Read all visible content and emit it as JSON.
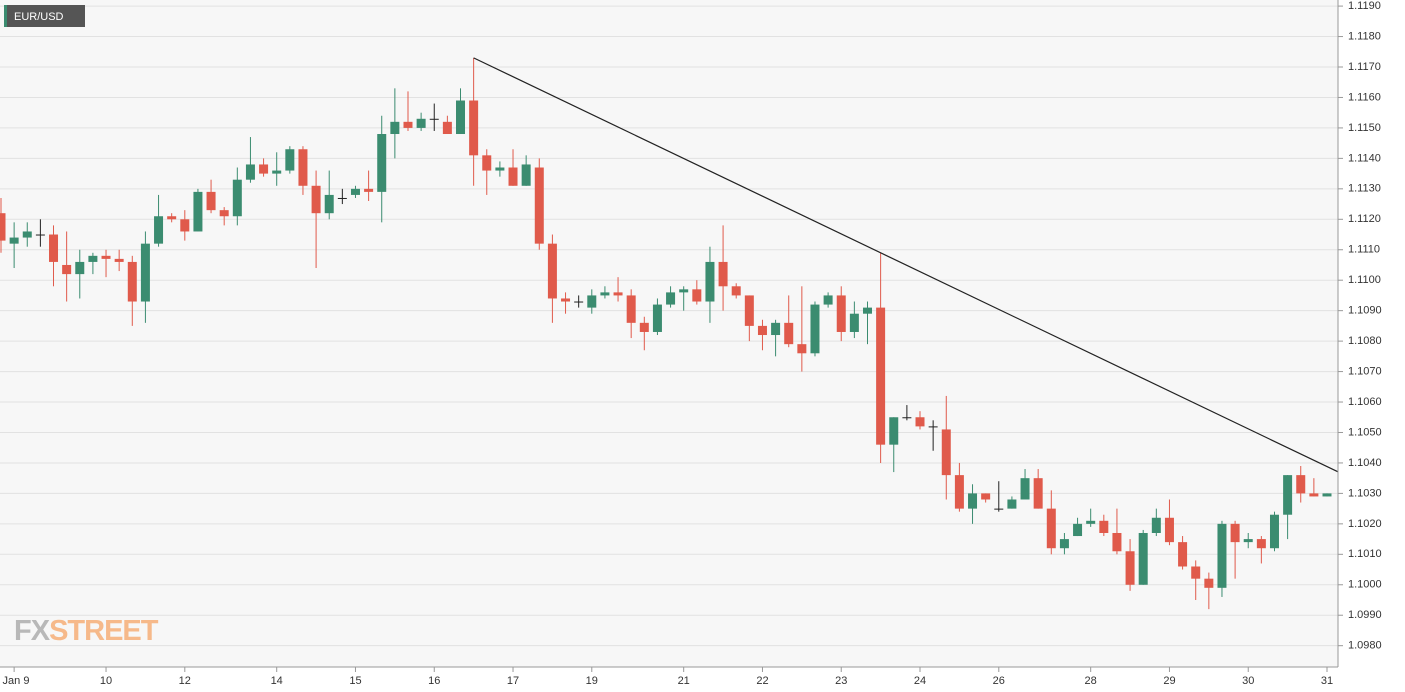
{
  "chart_data": {
    "type": "candlestick",
    "series": [
      {
        "name": "EUR/USD",
        "open": [
          1.1122,
          1.1112,
          1.1114,
          1.1115,
          1.1115,
          1.1105,
          1.1102,
          1.1106,
          1.1108,
          1.1107,
          1.1106,
          1.1093,
          1.1112,
          1.1121,
          1.112,
          1.1116,
          1.1129,
          1.1123,
          1.1121,
          1.1133,
          1.1138,
          1.1135,
          1.1136,
          1.1143,
          1.1131,
          1.1122,
          1.1127,
          1.1128,
          1.113,
          1.1129,
          1.1148,
          1.1152,
          1.115,
          1.1153,
          1.1152,
          1.1148,
          1.1159,
          1.1141,
          1.1136,
          1.1137,
          1.1131,
          1.1137,
          1.1112,
          1.1094,
          1.1093,
          1.1091,
          1.1095,
          1.1096,
          1.1095,
          1.1086,
          1.1083,
          1.1092,
          1.1096,
          1.1097,
          1.1093,
          1.1106,
          1.1098,
          1.1095,
          1.1085,
          1.1082,
          1.1086,
          1.1079,
          1.1076,
          1.1092,
          1.1095,
          1.1083,
          1.1089,
          1.1091,
          1.1046,
          1.1055,
          1.1055,
          1.1052,
          1.1051,
          1.1036,
          1.1025,
          1.103,
          1.1025,
          1.1025,
          1.1028,
          1.1035,
          1.1025,
          1.1012,
          1.1016,
          1.102,
          1.1021,
          1.1017,
          1.1011,
          1.1,
          1.1017,
          1.1022,
          1.1014,
          1.1006,
          1.1002,
          1.0999,
          1.102,
          1.1014,
          1.1015,
          1.1012,
          1.1023,
          1.1036,
          1.103,
          1.1029
        ],
        "high": [
          1.1127,
          1.1119,
          1.1119,
          1.112,
          1.1118,
          1.1116,
          1.111,
          1.1109,
          1.111,
          1.111,
          1.1108,
          1.1116,
          1.1128,
          1.1122,
          1.1123,
          1.113,
          1.1133,
          1.1124,
          1.1137,
          1.1147,
          1.114,
          1.1142,
          1.1144,
          1.1144,
          1.1136,
          1.1136,
          1.113,
          1.1131,
          1.1136,
          1.1154,
          1.1163,
          1.1162,
          1.1155,
          1.1158,
          1.1154,
          1.1163,
          1.1173,
          1.1143,
          1.1139,
          1.1143,
          1.1141,
          1.114,
          1.1115,
          1.1096,
          1.1095,
          1.1097,
          1.1098,
          1.1101,
          1.1097,
          1.1088,
          1.1094,
          1.1098,
          1.1098,
          1.11,
          1.1111,
          1.1118,
          1.1099,
          1.1095,
          1.1087,
          1.1087,
          1.1095,
          1.1098,
          1.1093,
          1.1096,
          1.1098,
          1.1093,
          1.1093,
          1.1109,
          1.1055,
          1.1059,
          1.1057,
          1.1054,
          1.1062,
          1.104,
          1.1033,
          1.103,
          1.1034,
          1.1029,
          1.1038,
          1.1038,
          1.1031,
          1.1017,
          1.1022,
          1.1025,
          1.1023,
          1.1025,
          1.1015,
          1.1018,
          1.1025,
          1.1028,
          1.1016,
          1.1008,
          1.1004,
          1.1021,
          1.1021,
          1.1017,
          1.1016,
          1.1024,
          1.1036,
          1.1039,
          1.1035,
          1.103
        ],
        "low": [
          1.1109,
          1.1104,
          1.1111,
          1.1111,
          1.1098,
          1.1093,
          1.1094,
          1.1102,
          1.1101,
          1.1103,
          1.1085,
          1.1086,
          1.1111,
          1.1119,
          1.1113,
          1.1116,
          1.1122,
          1.1118,
          1.1118,
          1.1132,
          1.1134,
          1.1131,
          1.1135,
          1.1128,
          1.1104,
          1.112,
          1.1125,
          1.1127,
          1.1126,
          1.1119,
          1.114,
          1.1149,
          1.1149,
          1.1149,
          1.1148,
          1.1148,
          1.1131,
          1.1128,
          1.1134,
          1.1131,
          1.1131,
          1.111,
          1.1086,
          1.1089,
          1.1091,
          1.1089,
          1.1094,
          1.1093,
          1.1081,
          1.1077,
          1.1082,
          1.1091,
          1.109,
          1.1092,
          1.1086,
          1.109,
          1.1094,
          1.108,
          1.1077,
          1.1075,
          1.1078,
          1.107,
          1.1075,
          1.1091,
          1.108,
          1.1081,
          1.1079,
          1.104,
          1.1037,
          1.1054,
          1.1051,
          1.1044,
          1.1028,
          1.1024,
          1.102,
          1.1027,
          1.1024,
          1.1025,
          1.1028,
          1.1025,
          1.101,
          1.101,
          1.1016,
          1.1019,
          1.1016,
          1.101,
          1.0998,
          1.1,
          1.1016,
          1.1013,
          1.1005,
          1.0995,
          1.0992,
          1.0996,
          1.1002,
          1.1012,
          1.1007,
          1.1011,
          1.1015,
          1.1027,
          1.1029,
          1.1029
        ],
        "close": [
          1.1113,
          1.1114,
          1.1116,
          1.1115,
          1.1106,
          1.1102,
          1.1106,
          1.1108,
          1.1107,
          1.1106,
          1.1093,
          1.1112,
          1.1121,
          1.112,
          1.1116,
          1.1129,
          1.1123,
          1.1121,
          1.1133,
          1.1138,
          1.1135,
          1.1136,
          1.1143,
          1.1131,
          1.1122,
          1.1128,
          1.1127,
          1.113,
          1.1129,
          1.1148,
          1.1152,
          1.115,
          1.1153,
          1.1153,
          1.1148,
          1.1159,
          1.1141,
          1.1136,
          1.1137,
          1.1131,
          1.1138,
          1.1112,
          1.1094,
          1.1093,
          1.1093,
          1.1095,
          1.1096,
          1.1095,
          1.1086,
          1.1083,
          1.1092,
          1.1096,
          1.1097,
          1.1093,
          1.1106,
          1.1098,
          1.1095,
          1.1085,
          1.1082,
          1.1086,
          1.1079,
          1.1076,
          1.1092,
          1.1095,
          1.1083,
          1.1089,
          1.1091,
          1.1046,
          1.1055,
          1.1055,
          1.1052,
          1.1052,
          1.1036,
          1.1025,
          1.103,
          1.1028,
          1.1025,
          1.1028,
          1.1035,
          1.1025,
          1.1012,
          1.1015,
          1.102,
          1.1021,
          1.1017,
          1.1011,
          1.1,
          1.1017,
          1.1022,
          1.1014,
          1.1006,
          1.1002,
          1.0999,
          1.102,
          1.1014,
          1.1015,
          1.1012,
          1.1023,
          1.1036,
          1.103,
          1.1029,
          1.103
        ]
      }
    ],
    "categories": [
      null,
      "Jan 9",
      null,
      null,
      null,
      null,
      null,
      null,
      "10",
      null,
      null,
      null,
      null,
      null,
      "12",
      null,
      null,
      null,
      null,
      null,
      null,
      "14",
      null,
      null,
      null,
      null,
      null,
      "15",
      null,
      null,
      null,
      null,
      null,
      "16",
      null,
      null,
      null,
      null,
      null,
      "17",
      null,
      null,
      null,
      null,
      null,
      "19",
      null,
      null,
      null,
      null,
      null,
      null,
      "21",
      null,
      null,
      null,
      null,
      null,
      "22",
      null,
      null,
      null,
      null,
      null,
      "23",
      null,
      null,
      null,
      null,
      null,
      "24",
      null,
      null,
      null,
      null,
      null,
      "26",
      null,
      null,
      null,
      null,
      null,
      null,
      "28",
      null,
      null,
      null,
      null,
      null,
      "29",
      null,
      null,
      null,
      null,
      null,
      "30",
      null,
      null,
      null,
      null,
      null,
      "31"
    ],
    "ylim": [
      1.0973,
      1.1192
    ],
    "yticks": [
      {
        "value": 1.098,
        "label": "1.0980"
      },
      {
        "value": 1.099,
        "label": "1.0990"
      },
      {
        "value": 1.1,
        "label": "1.1000"
      },
      {
        "value": 1.101,
        "label": "1.1010"
      },
      {
        "value": 1.102,
        "label": "1.1020"
      },
      {
        "value": 1.103,
        "label": "1.1030"
      },
      {
        "value": 1.104,
        "label": "1.1040"
      },
      {
        "value": 1.105,
        "label": "1.1050"
      },
      {
        "value": 1.106,
        "label": "1.1060"
      },
      {
        "value": 1.107,
        "label": "1.1070"
      },
      {
        "value": 1.108,
        "label": "1.1080"
      },
      {
        "value": 1.109,
        "label": "1.1090"
      },
      {
        "value": 1.11,
        "label": "1.1100"
      },
      {
        "value": 1.111,
        "label": "1.1110"
      },
      {
        "value": 1.112,
        "label": "1.1120"
      },
      {
        "value": 1.113,
        "label": "1.1130"
      },
      {
        "value": 1.114,
        "label": "1.1140"
      },
      {
        "value": 1.115,
        "label": "1.1150"
      },
      {
        "value": 1.116,
        "label": "1.1160"
      },
      {
        "value": 1.117,
        "label": "1.1170"
      },
      {
        "value": 1.118,
        "label": "1.1180"
      },
      {
        "value": 1.119,
        "label": "1.1190"
      }
    ],
    "grid": true,
    "up_color": "#3b8c70",
    "down_color": "#e05a4b",
    "doji_color": "#222222",
    "branding": [
      "FX",
      "STREET"
    ]
  }
}
